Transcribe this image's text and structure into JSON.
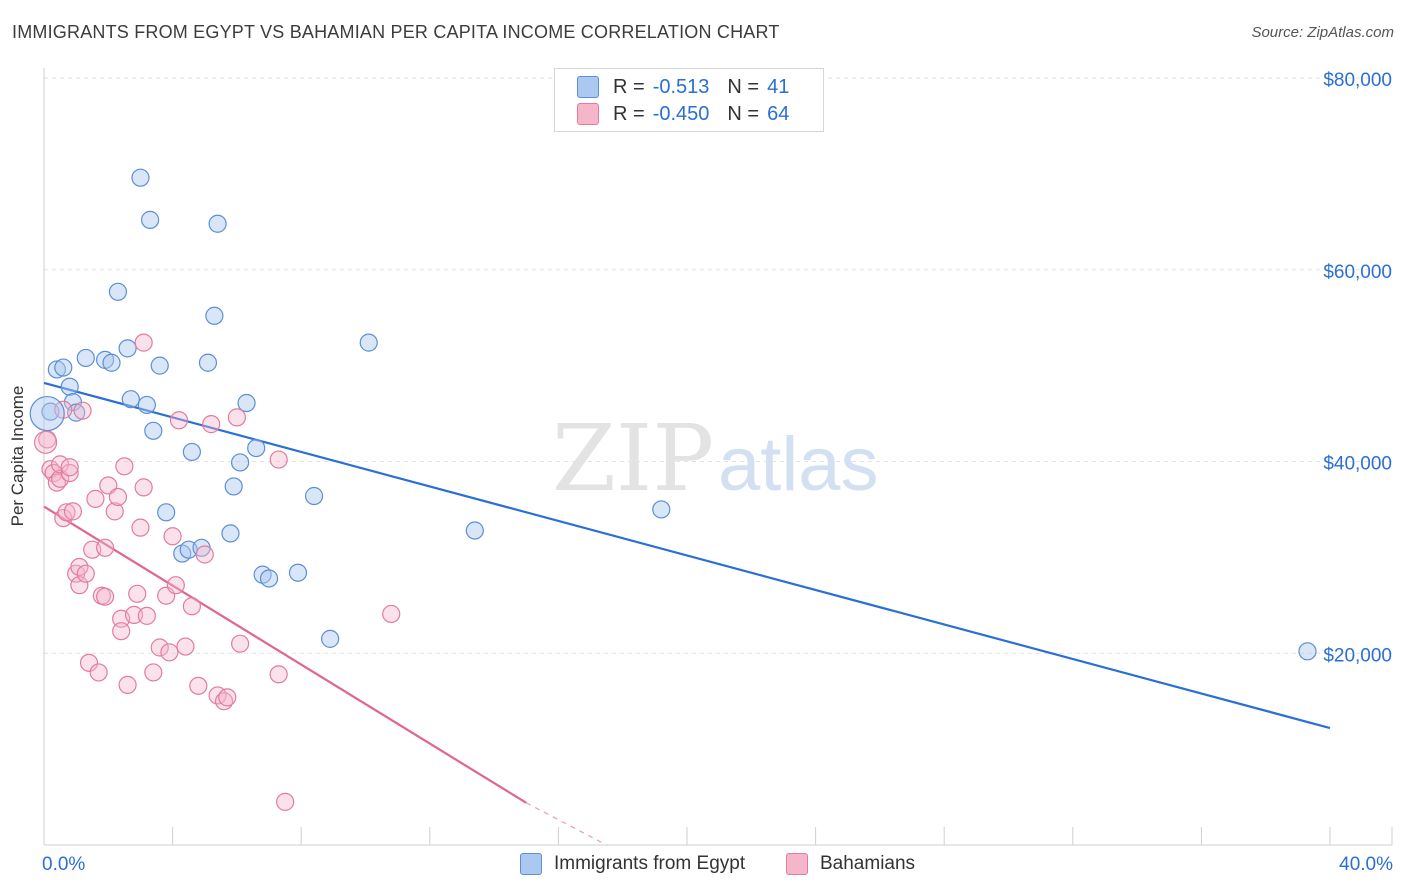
{
  "title": "IMMIGRANTS FROM EGYPT VS BAHAMIAN PER CAPITA INCOME CORRELATION CHART",
  "source": "Source: ZipAtlas.com",
  "legend": {
    "r_label": "R =",
    "n_label": "N =",
    "series": [
      {
        "name": "Immigrants from Egypt",
        "r": "-0.513",
        "n": "41",
        "fill": "#aac8f0",
        "stroke": "#5b8fd6"
      },
      {
        "name": "Bahamians",
        "r": "-0.450",
        "n": "64",
        "fill": "#f6b6ca",
        "stroke": "#e27c9e"
      }
    ]
  },
  "chart_data": {
    "type": "scatter",
    "title": "IMMIGRANTS FROM EGYPT VS BAHAMIAN PER CAPITA INCOME CORRELATION CHART",
    "xlabel": "",
    "ylabel": "Per Capita Income",
    "xlim": [
      0,
      40
    ],
    "ylim": [
      0,
      80000
    ],
    "x_tick_labels": [
      "0.0%",
      "40.0%"
    ],
    "y_tick_labels": [
      "$20,000",
      "$40,000",
      "$60,000",
      "$80,000"
    ],
    "y_ticks": [
      20000,
      40000,
      60000,
      80000
    ],
    "watermark": {
      "zip": "ZIP",
      "atlas": "atlas"
    },
    "series": [
      {
        "name": "Immigrants from Egypt",
        "color": "#5b8fd6",
        "trend": {
          "x0": 0,
          "y0": 48200,
          "x1": 40,
          "y1": 12200
        },
        "points": [
          [
            0.2,
            45200
          ],
          [
            0.4,
            49600
          ],
          [
            0.6,
            49800
          ],
          [
            0.8,
            47800
          ],
          [
            0.9,
            46200
          ],
          [
            1.0,
            45100
          ],
          [
            1.3,
            50800
          ],
          [
            1.9,
            50600
          ],
          [
            2.1,
            50300
          ],
          [
            2.3,
            57700
          ],
          [
            2.6,
            51800
          ],
          [
            2.7,
            46500
          ],
          [
            3.0,
            69600
          ],
          [
            3.2,
            45900
          ],
          [
            3.3,
            65200
          ],
          [
            3.4,
            43200
          ],
          [
            3.6,
            50000
          ],
          [
            3.8,
            34700
          ],
          [
            4.3,
            30400
          ],
          [
            4.5,
            30800
          ],
          [
            4.6,
            41000
          ],
          [
            4.9,
            31000
          ],
          [
            5.1,
            50300
          ],
          [
            5.3,
            55200
          ],
          [
            5.4,
            64800
          ],
          [
            5.8,
            32500
          ],
          [
            5.9,
            37400
          ],
          [
            6.1,
            39900
          ],
          [
            6.3,
            46100
          ],
          [
            6.6,
            41400
          ],
          [
            6.8,
            28200
          ],
          [
            7.0,
            27800
          ],
          [
            7.9,
            28400
          ],
          [
            8.4,
            36400
          ],
          [
            8.9,
            21500
          ],
          [
            10.1,
            52400
          ],
          [
            13.4,
            32800
          ],
          [
            19.2,
            35000
          ],
          [
            39.3,
            20200
          ]
        ]
      },
      {
        "name": "Bahamians",
        "color": "#e27c9e",
        "trend": {
          "x0": 0,
          "y0": 35300,
          "x1": 15.0,
          "y1": 4400,
          "dash_to_x": 17.5,
          "dash_to_y": -600
        },
        "points": [
          [
            0.1,
            42300
          ],
          [
            0.2,
            39200
          ],
          [
            0.3,
            38800
          ],
          [
            0.4,
            37800
          ],
          [
            0.5,
            38200
          ],
          [
            0.5,
            39700
          ],
          [
            0.6,
            34100
          ],
          [
            0.6,
            45400
          ],
          [
            0.7,
            34700
          ],
          [
            0.8,
            38800
          ],
          [
            0.8,
            39400
          ],
          [
            0.9,
            34800
          ],
          [
            1.0,
            28300
          ],
          [
            1.1,
            27100
          ],
          [
            1.1,
            29000
          ],
          [
            1.2,
            45300
          ],
          [
            1.3,
            28300
          ],
          [
            1.4,
            19000
          ],
          [
            1.5,
            30800
          ],
          [
            1.6,
            36100
          ],
          [
            1.7,
            18000
          ],
          [
            1.8,
            26000
          ],
          [
            1.9,
            25900
          ],
          [
            1.9,
            31000
          ],
          [
            2.0,
            37500
          ],
          [
            2.2,
            34800
          ],
          [
            2.3,
            36300
          ],
          [
            2.4,
            23600
          ],
          [
            2.4,
            22300
          ],
          [
            2.5,
            39500
          ],
          [
            2.6,
            16700
          ],
          [
            2.8,
            24000
          ],
          [
            2.9,
            26200
          ],
          [
            3.0,
            33100
          ],
          [
            3.1,
            37300
          ],
          [
            3.1,
            52400
          ],
          [
            3.2,
            23900
          ],
          [
            3.4,
            18000
          ],
          [
            3.6,
            20600
          ],
          [
            3.8,
            26000
          ],
          [
            3.9,
            20100
          ],
          [
            4.0,
            32200
          ],
          [
            4.1,
            27100
          ],
          [
            4.2,
            44300
          ],
          [
            4.4,
            20700
          ],
          [
            4.6,
            24900
          ],
          [
            4.8,
            16600
          ],
          [
            5.0,
            30300
          ],
          [
            5.2,
            43900
          ],
          [
            5.4,
            15600
          ],
          [
            5.6,
            15000
          ],
          [
            5.7,
            15400
          ],
          [
            6.0,
            44600
          ],
          [
            6.1,
            21000
          ],
          [
            7.3,
            17800
          ],
          [
            7.3,
            40200
          ],
          [
            7.5,
            4500
          ],
          [
            10.8,
            24100
          ]
        ]
      }
    ]
  }
}
